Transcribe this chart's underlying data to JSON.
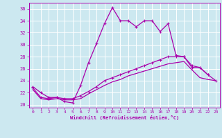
{
  "xlabel": "Windchill (Refroidissement éolien,°C)",
  "bg_color": "#cce8f0",
  "grid_color": "#ffffff",
  "line_color": "#aa00aa",
  "xlim": [
    -0.5,
    23.5
  ],
  "ylim": [
    19.5,
    37.0
  ],
  "yticks": [
    20,
    22,
    24,
    26,
    28,
    30,
    32,
    34,
    36
  ],
  "xticks": [
    0,
    1,
    2,
    3,
    4,
    5,
    6,
    7,
    8,
    9,
    10,
    11,
    12,
    13,
    14,
    15,
    16,
    17,
    18,
    19,
    20,
    21,
    22,
    23
  ],
  "series0_x": [
    0,
    1,
    2,
    3,
    4,
    5,
    6,
    7,
    8,
    9,
    10,
    11,
    12,
    13,
    14,
    15,
    16,
    17,
    18,
    19
  ],
  "series0_y": [
    23.0,
    22.0,
    21.2,
    21.2,
    20.5,
    20.3,
    23.2,
    27.0,
    30.2,
    33.5,
    36.2,
    34.0,
    34.0,
    33.0,
    34.0,
    34.0,
    32.2,
    33.5,
    28.2,
    28.0
  ],
  "series1_x": [
    19,
    20,
    21,
    22
  ],
  "series1_y": [
    28.0,
    26.2,
    26.2,
    25.0
  ],
  "series2_x": [
    0,
    1,
    2,
    3,
    4,
    5,
    6,
    7,
    8,
    9,
    10,
    11,
    12,
    13,
    14,
    15,
    16,
    17,
    18,
    19,
    20,
    21,
    22,
    23
  ],
  "series2_y": [
    22.8,
    21.2,
    21.0,
    21.2,
    21.0,
    21.0,
    21.5,
    22.2,
    23.0,
    24.0,
    24.5,
    25.0,
    25.5,
    26.0,
    26.5,
    27.0,
    27.5,
    28.0,
    28.0,
    28.0,
    26.5,
    26.2,
    25.0,
    24.0
  ],
  "series3_x": [
    0,
    1,
    2,
    3,
    4,
    5,
    6,
    7,
    8,
    9,
    10,
    11,
    12,
    13,
    14,
    15,
    16,
    17,
    18,
    19,
    20,
    21,
    22,
    23
  ],
  "series3_y": [
    22.5,
    21.0,
    20.8,
    21.0,
    20.8,
    20.8,
    21.0,
    21.8,
    22.5,
    23.2,
    23.8,
    24.2,
    24.8,
    25.2,
    25.6,
    26.0,
    26.4,
    26.8,
    27.0,
    27.2,
    25.8,
    24.5,
    24.2,
    24.0
  ]
}
